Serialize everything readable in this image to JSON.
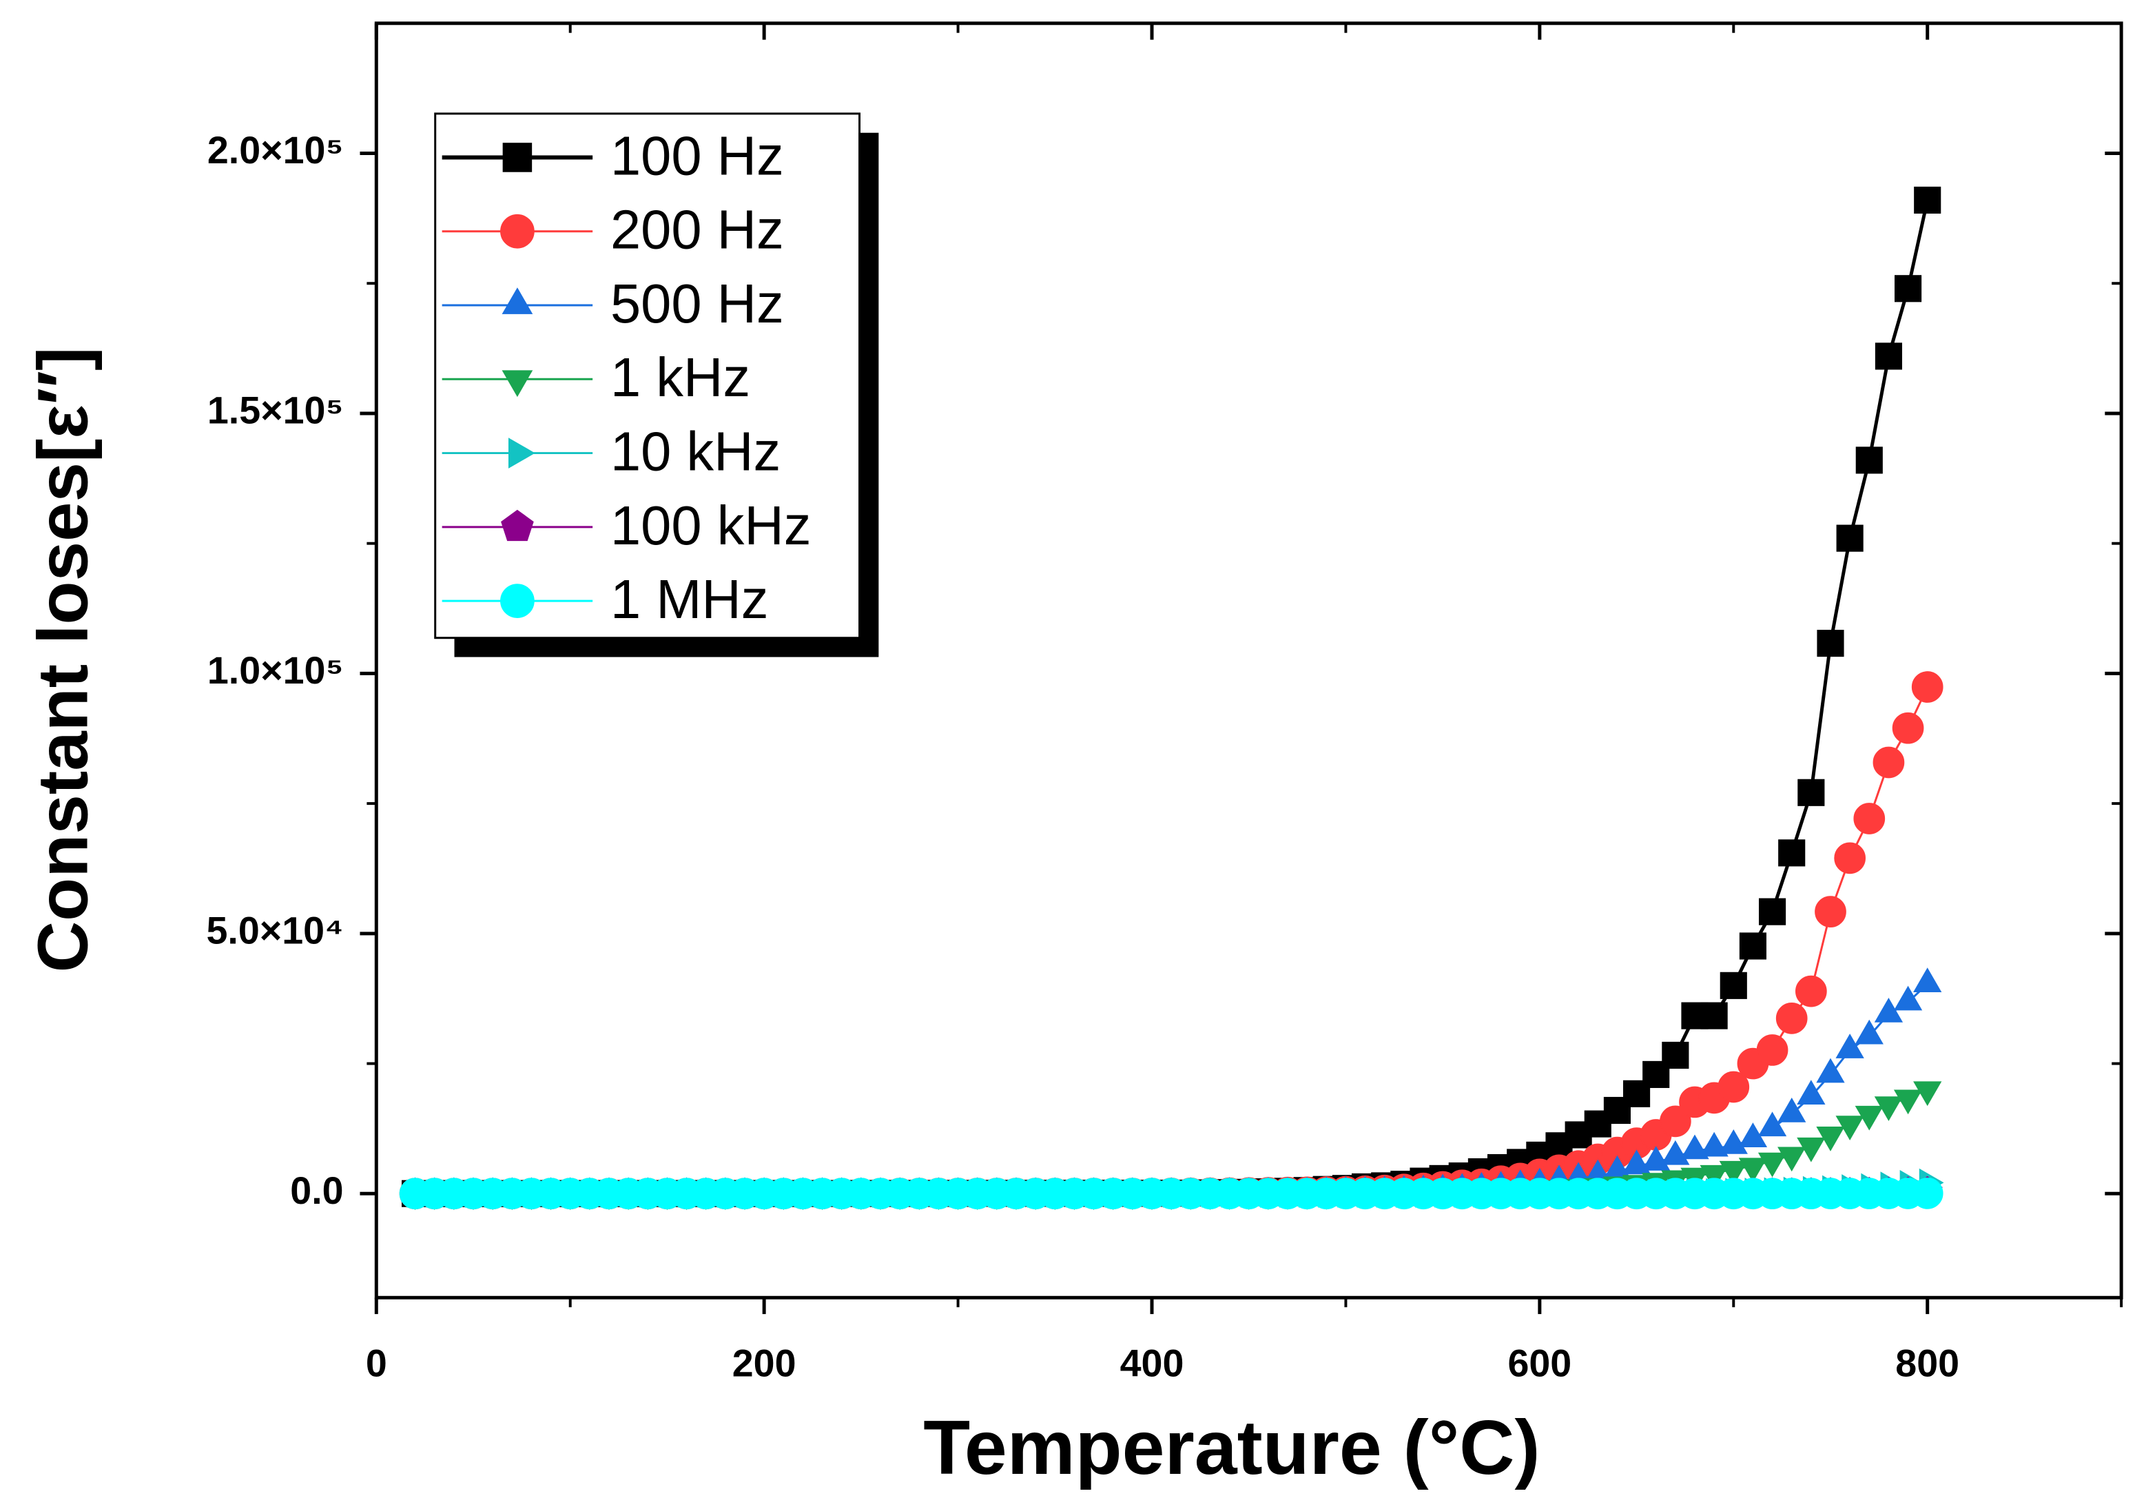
{
  "chart_data": {
    "type": "line",
    "xlabel": "Temperature (°C)",
    "ylabel": "Constant loses[ε′′]",
    "xlim": [
      0,
      900
    ],
    "ylim": [
      -20000,
      225000
    ],
    "xticks": [
      0,
      200,
      400,
      600,
      800
    ],
    "xminorticks": [
      100,
      300,
      500,
      700,
      900
    ],
    "yticks": [
      {
        "value": 0,
        "label": "0.0"
      },
      {
        "value": 50000,
        "label": "5.0×10⁴"
      },
      {
        "value": 100000,
        "label": "1.0×10⁵"
      },
      {
        "value": 150000,
        "label": "1.5×10⁵"
      },
      {
        "value": 200000,
        "label": "2.0×10⁵"
      }
    ],
    "yminorticks": [
      25000,
      75000,
      125000,
      175000
    ],
    "legend": "upper left",
    "x": [
      20,
      30,
      40,
      50,
      60,
      70,
      80,
      90,
      100,
      110,
      120,
      130,
      140,
      150,
      160,
      170,
      180,
      190,
      200,
      210,
      220,
      230,
      240,
      250,
      260,
      270,
      280,
      290,
      300,
      310,
      320,
      330,
      340,
      350,
      360,
      370,
      380,
      390,
      400,
      410,
      420,
      430,
      440,
      450,
      460,
      470,
      480,
      490,
      500,
      510,
      520,
      530,
      540,
      550,
      560,
      570,
      580,
      590,
      600,
      610,
      620,
      630,
      640,
      650,
      660,
      670,
      680,
      690,
      700,
      710,
      720,
      730,
      740,
      750,
      760,
      770,
      780,
      790,
      800
    ],
    "series": [
      {
        "name": "100 Hz",
        "color": "#000000",
        "marker": "square",
        "values": [
          5,
          5,
          6,
          6,
          7,
          7,
          8,
          8,
          9,
          10,
          11,
          12,
          13,
          14,
          15,
          16,
          18,
          20,
          22,
          24,
          26,
          28,
          30,
          32,
          34,
          36,
          38,
          40,
          42,
          44,
          46,
          48,
          50,
          52,
          54,
          56,
          58,
          60,
          60,
          80,
          100,
          150,
          200,
          250,
          350,
          450,
          600,
          800,
          1000,
          1300,
          1500,
          1800,
          2400,
          2900,
          3400,
          4200,
          5000,
          6000,
          7400,
          9200,
          11300,
          13400,
          16000,
          19200,
          22900,
          26600,
          34200,
          34200,
          40000,
          47600,
          54200,
          65500,
          77100,
          105800,
          126000,
          141000,
          161000,
          174000,
          191000
        ]
      },
      {
        "name": "200 Hz",
        "color": "#ff3b3b",
        "marker": "circle",
        "values": [
          3,
          3,
          3,
          4,
          4,
          4,
          5,
          5,
          5,
          6,
          6,
          7,
          7,
          8,
          8,
          9,
          9,
          10,
          10,
          11,
          12,
          13,
          14,
          15,
          16,
          17,
          18,
          19,
          20,
          21,
          22,
          23,
          24,
          25,
          26,
          27,
          28,
          29,
          30,
          40,
          50,
          70,
          90,
          120,
          160,
          200,
          250,
          300,
          350,
          450,
          600,
          800,
          1000,
          1300,
          1600,
          1800,
          2400,
          2900,
          3700,
          4500,
          5300,
          6600,
          7900,
          9700,
          11300,
          13900,
          17600,
          18400,
          20500,
          25000,
          27600,
          33700,
          38900,
          54200,
          64500,
          72100,
          82900,
          89500,
          97400
        ]
      },
      {
        "name": "500 Hz",
        "color": "#1a6fdf",
        "marker": "triangle-up",
        "values": [
          2,
          2,
          2,
          2,
          2,
          3,
          3,
          3,
          3,
          3,
          4,
          4,
          4,
          4,
          5,
          5,
          5,
          5,
          6,
          6,
          6,
          7,
          7,
          7,
          8,
          8,
          8,
          9,
          9,
          9,
          10,
          10,
          11,
          11,
          12,
          12,
          13,
          13,
          14,
          18,
          22,
          30,
          40,
          50,
          70,
          90,
          120,
          160,
          200,
          250,
          300,
          400,
          500,
          650,
          800,
          1000,
          1200,
          1500,
          1800,
          2400,
          2900,
          3400,
          4200,
          5300,
          6000,
          7100,
          8200,
          8700,
          9200,
          10500,
          12600,
          15300,
          18700,
          22900,
          27600,
          30300,
          34500,
          36800,
          40300
        ]
      },
      {
        "name": "1 kHz",
        "color": "#1aa550",
        "marker": "triangle-down",
        "values": [
          1,
          1,
          1,
          1,
          1,
          1,
          1,
          1,
          1,
          2,
          2,
          2,
          2,
          2,
          2,
          2,
          2,
          2,
          2,
          3,
          3,
          3,
          3,
          3,
          3,
          3,
          3,
          3,
          3,
          4,
          4,
          4,
          4,
          4,
          4,
          4,
          4,
          4,
          4,
          6,
          8,
          10,
          14,
          18,
          24,
          30,
          40,
          55,
          100,
          130,
          170,
          220,
          280,
          350,
          420,
          500,
          600,
          700,
          850,
          1000,
          1200,
          1400,
          1700,
          2000,
          2400,
          2900,
          3400,
          3900,
          4700,
          5300,
          6300,
          7400,
          9200,
          11300,
          13400,
          15300,
          17100,
          18400,
          20000
        ]
      },
      {
        "name": "10 kHz",
        "color": "#13c3c3",
        "marker": "triangle-right",
        "values": [
          1,
          1,
          1,
          1,
          1,
          1,
          1,
          1,
          1,
          1,
          1,
          1,
          1,
          1,
          1,
          1,
          1,
          1,
          1,
          1,
          1,
          1,
          1,
          1,
          1,
          1,
          1,
          1,
          1,
          1,
          1,
          1,
          1,
          1,
          1,
          1,
          1,
          1,
          1,
          1,
          1,
          1,
          1,
          1,
          1,
          1,
          1,
          1,
          10,
          12,
          14,
          16,
          19,
          22,
          26,
          30,
          35,
          40,
          48,
          56,
          66,
          78,
          92,
          110,
          130,
          160,
          190,
          230,
          280,
          340,
          420,
          520,
          640,
          800,
          1000,
          1200,
          1500,
          1800,
          2100
        ]
      },
      {
        "name": "100 kHz",
        "color": "#8b008b",
        "marker": "pentagon",
        "values": [
          0,
          0,
          0,
          0,
          0,
          0,
          0,
          0,
          0,
          0,
          0,
          0,
          0,
          0,
          0,
          0,
          0,
          0,
          0,
          0,
          0,
          0,
          0,
          0,
          0,
          0,
          0,
          0,
          0,
          0,
          0,
          0,
          0,
          0,
          0,
          0,
          0,
          0,
          0,
          0,
          0,
          0,
          0,
          0,
          0,
          0,
          0,
          0,
          1,
          1,
          2,
          2,
          3,
          3,
          4,
          5,
          6,
          7,
          8,
          10,
          12,
          14,
          17,
          20,
          24,
          28,
          33,
          40,
          48,
          57,
          68,
          80,
          95,
          115,
          140,
          170,
          200,
          250,
          300
        ]
      },
      {
        "name": "1 MHz",
        "color": "#00ffff",
        "marker": "circle",
        "values": [
          0,
          0,
          0,
          0,
          0,
          0,
          0,
          0,
          0,
          0,
          0,
          0,
          0,
          0,
          0,
          0,
          0,
          0,
          0,
          0,
          0,
          0,
          0,
          0,
          0,
          0,
          0,
          0,
          0,
          0,
          0,
          0,
          0,
          0,
          0,
          0,
          0,
          0,
          0,
          0,
          0,
          0,
          0,
          0,
          0,
          0,
          0,
          0,
          0,
          0,
          0,
          0,
          0,
          0,
          0,
          0,
          0,
          0,
          0,
          0,
          0,
          0,
          0,
          0,
          0,
          0,
          0,
          5,
          6,
          8,
          10,
          12,
          15,
          18,
          22,
          27,
          33,
          40,
          50
        ]
      }
    ]
  }
}
